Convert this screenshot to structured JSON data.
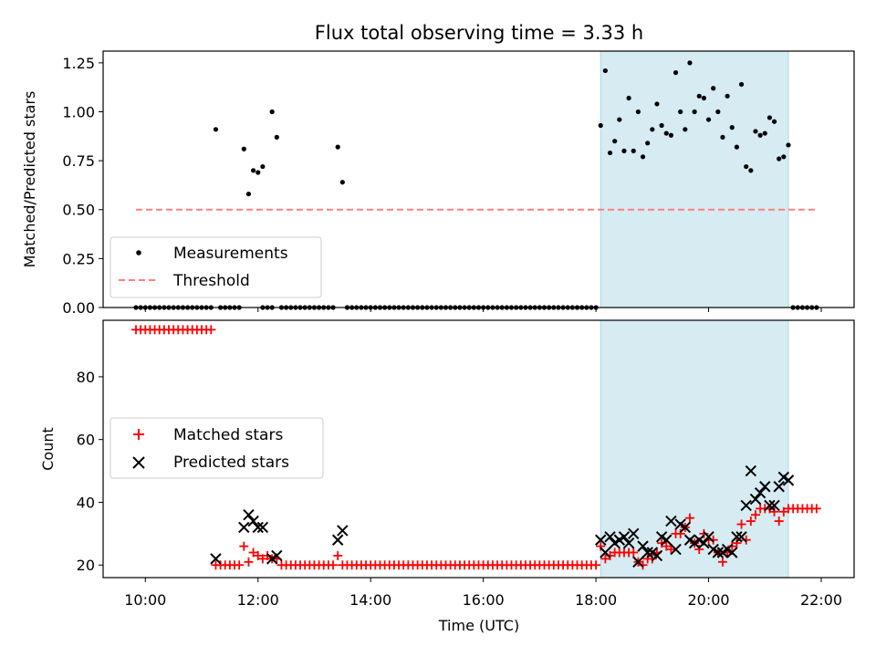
{
  "title": "Flux total observing time = 3.33 h",
  "colors": {
    "measurement": "#000000",
    "threshold": "#ff7f7f",
    "matched": "#ff0000",
    "predicted": "#000000",
    "shade": "#add8e6"
  },
  "chart_data": [
    {
      "type": "scatter",
      "ylabel": "Matched/Predicted stars",
      "xlim": [
        "09:15",
        "22:35"
      ],
      "ylim": [
        0,
        1.31
      ],
      "yticks": [
        0,
        0.25,
        0.5,
        0.75,
        1.0,
        1.25
      ],
      "ytick_labels": [
        "0.00",
        "0.25",
        "0.50",
        "0.75",
        "1.00",
        "1.25"
      ],
      "xtick_labels_visible": false,
      "legend": {
        "placement": "lower-left",
        "entries": [
          "Measurements",
          "Threshold"
        ]
      },
      "shaded_interval": [
        "18:05",
        "21:25"
      ],
      "threshold": {
        "name": "Threshold",
        "y": 0.5,
        "x_start": "09:50",
        "x_end": "21:55"
      },
      "series": [
        {
          "name": "Measurements",
          "points": [
            [
              "11:15",
              0.91
            ],
            [
              "11:45",
              0.81
            ],
            [
              "11:50",
              0.58
            ],
            [
              "11:55",
              0.7
            ],
            [
              "12:00",
              0.69
            ],
            [
              "12:05",
              0.72
            ],
            [
              "12:15",
              1.0
            ],
            [
              "12:20",
              0.87
            ],
            [
              "13:25",
              0.82
            ],
            [
              "13:30",
              0.64
            ],
            [
              "18:05",
              0.93
            ],
            [
              "18:10",
              1.21
            ],
            [
              "18:15",
              0.79
            ],
            [
              "18:20",
              0.85
            ],
            [
              "18:25",
              0.96
            ],
            [
              "18:30",
              0.8
            ],
            [
              "18:35",
              1.07
            ],
            [
              "18:40",
              0.8
            ],
            [
              "18:45",
              1.0
            ],
            [
              "18:50",
              0.77
            ],
            [
              "18:55",
              0.84
            ],
            [
              "19:00",
              0.91
            ],
            [
              "19:05",
              1.04
            ],
            [
              "19:10",
              0.93
            ],
            [
              "19:15",
              0.89
            ],
            [
              "19:20",
              0.88
            ],
            [
              "19:25",
              1.2
            ],
            [
              "19:30",
              1.0
            ],
            [
              "19:35",
              0.91
            ],
            [
              "19:40",
              1.25
            ],
            [
              "19:45",
              1.0
            ],
            [
              "19:50",
              1.08
            ],
            [
              "19:55",
              1.07
            ],
            [
              "20:00",
              0.96
            ],
            [
              "20:05",
              1.12
            ],
            [
              "20:10",
              1.0
            ],
            [
              "20:15",
              0.87
            ],
            [
              "20:20",
              1.08
            ],
            [
              "20:25",
              0.92
            ],
            [
              "20:30",
              0.82
            ],
            [
              "20:35",
              1.14
            ],
            [
              "20:40",
              0.72
            ],
            [
              "20:45",
              0.7
            ],
            [
              "20:50",
              0.9
            ],
            [
              "20:55",
              0.88
            ],
            [
              "21:00",
              0.89
            ],
            [
              "21:05",
              0.97
            ],
            [
              "21:10",
              0.95
            ],
            [
              "21:15",
              0.76
            ],
            [
              "21:20",
              0.77
            ],
            [
              "21:25",
              0.83
            ]
          ],
          "zero_runs": [
            [
              "09:50",
              "11:10"
            ],
            [
              "11:20",
              "11:40"
            ],
            [
              "12:05",
              "12:15"
            ],
            [
              "12:25",
              "13:20"
            ],
            [
              "13:35",
              "18:00"
            ],
            [
              "21:30",
              "21:50"
            ],
            [
              "21:55",
              "21:55"
            ]
          ],
          "step_minutes": 5
        }
      ]
    },
    {
      "type": "scatter",
      "xlabel": "Time (UTC)",
      "ylabel": "Count",
      "xlim": [
        "09:15",
        "22:35"
      ],
      "ylim": [
        16,
        98
      ],
      "xticks": [
        "10:00",
        "12:00",
        "14:00",
        "16:00",
        "18:00",
        "20:00",
        "22:00"
      ],
      "yticks": [
        20,
        40,
        60,
        80
      ],
      "legend": {
        "placement": "center-left",
        "entries": [
          "Matched stars",
          "Predicted stars"
        ]
      },
      "shaded_interval": [
        "18:05",
        "21:25"
      ],
      "series": [
        {
          "name": "Matched stars",
          "runs": [
            {
              "from": "09:50",
              "to": "11:10",
              "step": 5,
              "value": 95
            },
            {
              "from": "11:15",
              "to": "11:40",
              "step": 5,
              "value": 20
            },
            {
              "from": "12:25",
              "to": "13:20",
              "step": 5,
              "value": 20
            },
            {
              "from": "13:30",
              "to": "18:00",
              "step": 5,
              "value": 20
            },
            {
              "from": "21:30",
              "to": "21:55",
              "step": 5,
              "value": 38
            }
          ],
          "points": [
            [
              "11:45",
              26
            ],
            [
              "11:50",
              21
            ],
            [
              "11:55",
              24
            ],
            [
              "12:00",
              23
            ],
            [
              "12:05",
              22
            ],
            [
              "12:10",
              23
            ],
            [
              "12:15",
              22
            ],
            [
              "12:20",
              22
            ],
            [
              "13:25",
              23
            ],
            [
              "18:05",
              26
            ],
            [
              "18:10",
              22
            ],
            [
              "18:15",
              23
            ],
            [
              "18:20",
              24
            ],
            [
              "18:25",
              24
            ],
            [
              "18:30",
              24
            ],
            [
              "18:35",
              24
            ],
            [
              "18:40",
              24
            ],
            [
              "18:45",
              21
            ],
            [
              "18:50",
              20
            ],
            [
              "18:55",
              22
            ],
            [
              "19:00",
              22
            ],
            [
              "19:05",
              24
            ],
            [
              "19:10",
              27
            ],
            [
              "19:15",
              26
            ],
            [
              "19:20",
              25
            ],
            [
              "19:25",
              30
            ],
            [
              "19:30",
              30
            ],
            [
              "19:35",
              32
            ],
            [
              "19:40",
              35
            ],
            [
              "19:45",
              27
            ],
            [
              "19:50",
              25
            ],
            [
              "19:55",
              30
            ],
            [
              "20:00",
              28
            ],
            [
              "20:05",
              28
            ],
            [
              "20:10",
              24
            ],
            [
              "20:15",
              21
            ],
            [
              "20:20",
              24
            ],
            [
              "20:25",
              26
            ],
            [
              "20:30",
              27
            ],
            [
              "20:35",
              33
            ],
            [
              "20:40",
              28
            ],
            [
              "20:45",
              34
            ],
            [
              "20:50",
              36
            ],
            [
              "20:55",
              38
            ],
            [
              "21:00",
              38
            ],
            [
              "21:05",
              38
            ],
            [
              "21:10",
              37
            ],
            [
              "21:15",
              34
            ],
            [
              "21:20",
              37
            ],
            [
              "21:25",
              38
            ]
          ]
        },
        {
          "name": "Predicted stars",
          "points": [
            [
              "11:15",
              22
            ],
            [
              "11:45",
              32
            ],
            [
              "11:50",
              36
            ],
            [
              "11:55",
              34
            ],
            [
              "12:00",
              32
            ],
            [
              "12:05",
              32
            ],
            [
              "12:15",
              22
            ],
            [
              "12:20",
              23
            ],
            [
              "13:25",
              28
            ],
            [
              "13:30",
              31
            ],
            [
              "18:05",
              28
            ],
            [
              "18:10",
              24
            ],
            [
              "18:15",
              29
            ],
            [
              "18:20",
              27
            ],
            [
              "18:25",
              28
            ],
            [
              "18:30",
              29
            ],
            [
              "18:35",
              27
            ],
            [
              "18:40",
              30
            ],
            [
              "18:45",
              21
            ],
            [
              "18:50",
              26
            ],
            [
              "18:55",
              24
            ],
            [
              "19:00",
              24
            ],
            [
              "19:05",
              23
            ],
            [
              "19:10",
              29
            ],
            [
              "19:15",
              28
            ],
            [
              "19:20",
              34
            ],
            [
              "19:25",
              25
            ],
            [
              "19:30",
              33
            ],
            [
              "19:35",
              32
            ],
            [
              "19:40",
              28
            ],
            [
              "19:45",
              27
            ],
            [
              "19:50",
              28
            ],
            [
              "19:55",
              27
            ],
            [
              "20:00",
              29
            ],
            [
              "20:05",
              25
            ],
            [
              "20:10",
              24
            ],
            [
              "20:15",
              24
            ],
            [
              "20:20",
              25
            ],
            [
              "20:25",
              24
            ],
            [
              "20:30",
              29
            ],
            [
              "20:35",
              29
            ],
            [
              "20:40",
              39
            ],
            [
              "20:45",
              50
            ],
            [
              "20:50",
              41
            ],
            [
              "20:55",
              43
            ],
            [
              "21:00",
              45
            ],
            [
              "21:05",
              39
            ],
            [
              "21:10",
              39
            ],
            [
              "21:15",
              45
            ],
            [
              "21:20",
              48
            ],
            [
              "21:25",
              47
            ]
          ]
        }
      ]
    }
  ]
}
